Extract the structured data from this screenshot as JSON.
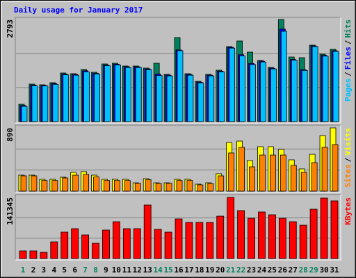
{
  "chart_data": [
    {
      "type": "bar",
      "title": "Daily usage for January 2017",
      "ylim": [
        0,
        2793
      ],
      "yticks": [
        2793
      ],
      "legend_separator": "/",
      "series": [
        {
          "name": "Hits",
          "color": "#00805C",
          "values": [
            475,
            1026,
            1007,
            1064,
            1330,
            1311,
            1425,
            1349,
            1577,
            1596,
            1520,
            1520,
            1463,
            1596,
            1292,
            2299,
            1311,
            1102,
            1292,
            1406,
            2052,
            2204,
            1900,
            1672,
            1482,
            2793,
            1767,
            1748,
            2090,
            1843,
            1976
          ]
        },
        {
          "name": "Files",
          "color": "#0000FF",
          "values": [
            440,
            1000,
            990,
            1040,
            1300,
            1290,
            1390,
            1320,
            1550,
            1570,
            1500,
            1500,
            1440,
            1300,
            1270,
            1960,
            1290,
            1080,
            1270,
            1380,
            2030,
            1830,
            1590,
            1650,
            1460,
            2530,
            1700,
            1420,
            2070,
            1810,
            1940
          ]
        },
        {
          "name": "Pages",
          "color": "#00C0FF",
          "values": [
            418,
            980,
            975,
            1020,
            1280,
            1270,
            1360,
            1300,
            1530,
            1550,
            1480,
            1480,
            1420,
            1260,
            1250,
            1940,
            1270,
            1060,
            1250,
            1360,
            2010,
            1800,
            1560,
            1630,
            1440,
            2470,
            1680,
            1400,
            2050,
            1790,
            1920
          ]
        }
      ]
    },
    {
      "type": "bar",
      "ylim": [
        0,
        890
      ],
      "yticks": [
        890
      ],
      "legend_separator": "/",
      "series": [
        {
          "name": "Visits",
          "color": "#FFFF00",
          "values": [
            225,
            225,
            166,
            166,
            196,
            264,
            274,
            225,
            166,
            166,
            166,
            117,
            176,
            117,
            117,
            166,
            166,
            98,
            117,
            245,
            685,
            704,
            430,
            626,
            626,
            587,
            440,
            313,
            518,
            782,
            890
          ]
        },
        {
          "name": "Sites",
          "color": "#FF8000",
          "values": [
            215,
            215,
            150,
            150,
            186,
            225,
            235,
            200,
            150,
            150,
            150,
            110,
            160,
            110,
            110,
            150,
            150,
            88,
            107,
            215,
            538,
            616,
            342,
            508,
            508,
            508,
            362,
            264,
            401,
            616,
            655
          ]
        }
      ]
    },
    {
      "type": "bar",
      "ylim": [
        0,
        141345
      ],
      "yticks": [
        141345
      ],
      "series": [
        {
          "name": "KBytes",
          "color": "#FF0000",
          "values": [
            17668,
            17668,
            14456,
            38549,
            61036,
            69067,
            54611,
            35336,
            65854,
            85128,
            69067,
            69067,
            123677,
            67460,
            61036,
            91553,
            83522,
            83522,
            83522,
            97978,
            141345,
            110827,
            93159,
            107614,
            101190,
            93159,
            85128,
            77097,
            114040,
            139739,
            133314
          ]
        }
      ],
      "categories": [
        "1",
        "2",
        "3",
        "4",
        "5",
        "6",
        "7",
        "8",
        "9",
        "10",
        "11",
        "12",
        "13",
        "14",
        "15",
        "16",
        "17",
        "18",
        "19",
        "20",
        "21",
        "22",
        "23",
        "24",
        "25",
        "26",
        "27",
        "28",
        "29",
        "30",
        "31"
      ],
      "category_colors": [
        "#00805C",
        "#000000",
        "#000000",
        "#000000",
        "#000000",
        "#000000",
        "#00805C",
        "#00805C",
        "#000000",
        "#000000",
        "#000000",
        "#000000",
        "#000000",
        "#00805C",
        "#00805C",
        "#000000",
        "#000000",
        "#000000",
        "#000000",
        "#000000",
        "#00805C",
        "#00805C",
        "#000000",
        "#000000",
        "#000000",
        "#000000",
        "#000000",
        "#00805C",
        "#00805C",
        "#000000",
        "#000000"
      ]
    }
  ]
}
